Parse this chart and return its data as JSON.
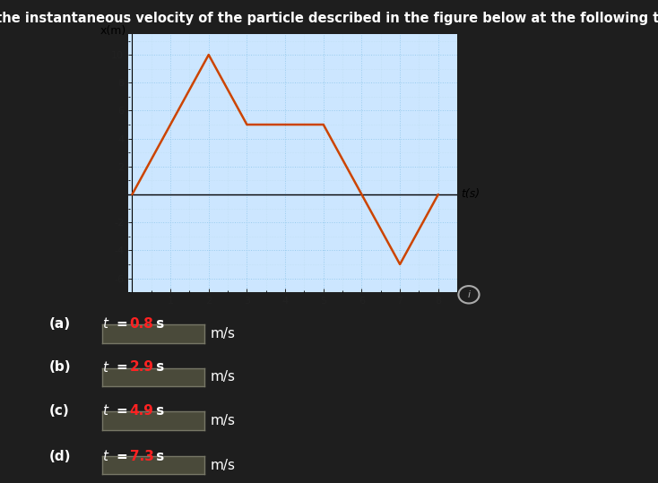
{
  "background_color": "#1e1e1e",
  "plot_bg_color": "#cce6ff",
  "title": "Find the instantaneous velocity of the particle described in the figure below at the following times.",
  "title_color": "white",
  "title_fontsize": 10.5,
  "graph_points_x": [
    0,
    2,
    3,
    5,
    7,
    8
  ],
  "graph_points_y": [
    0,
    10,
    5,
    5,
    -5,
    0
  ],
  "line_color": "#cc4400",
  "line_width": 1.8,
  "xlabel": "t(s)",
  "ylabel": "x(m)",
  "xlim": [
    -0.1,
    8.5
  ],
  "ylim": [
    -7,
    11.5
  ],
  "xticks": [
    1,
    2,
    3,
    4,
    5,
    6,
    7,
    8
  ],
  "yticks": [
    -6,
    -4,
    -2,
    0,
    2,
    4,
    6,
    8,
    10
  ],
  "grid_major_color": "#99ccee",
  "grid_minor_color": "#bbddee",
  "grid_linestyle": ":",
  "grid_linewidth": 0.7,
  "tick_color": "#222222",
  "parts": [
    {
      "label": "(a)",
      "t_val": "0.8"
    },
    {
      "label": "(b)",
      "t_val": "2.9"
    },
    {
      "label": "(c)",
      "t_val": "4.9"
    },
    {
      "label": "(d)",
      "t_val": "7.3"
    }
  ],
  "part_label_color": "white",
  "part_t_color": "white",
  "part_val_color": "#ff2222",
  "part_unit_color": "white",
  "input_box_facecolor": "#4a4a3a",
  "input_box_edgecolor": "#777766",
  "ms_label_color": "white",
  "info_circle_color": "#aaaaaa"
}
